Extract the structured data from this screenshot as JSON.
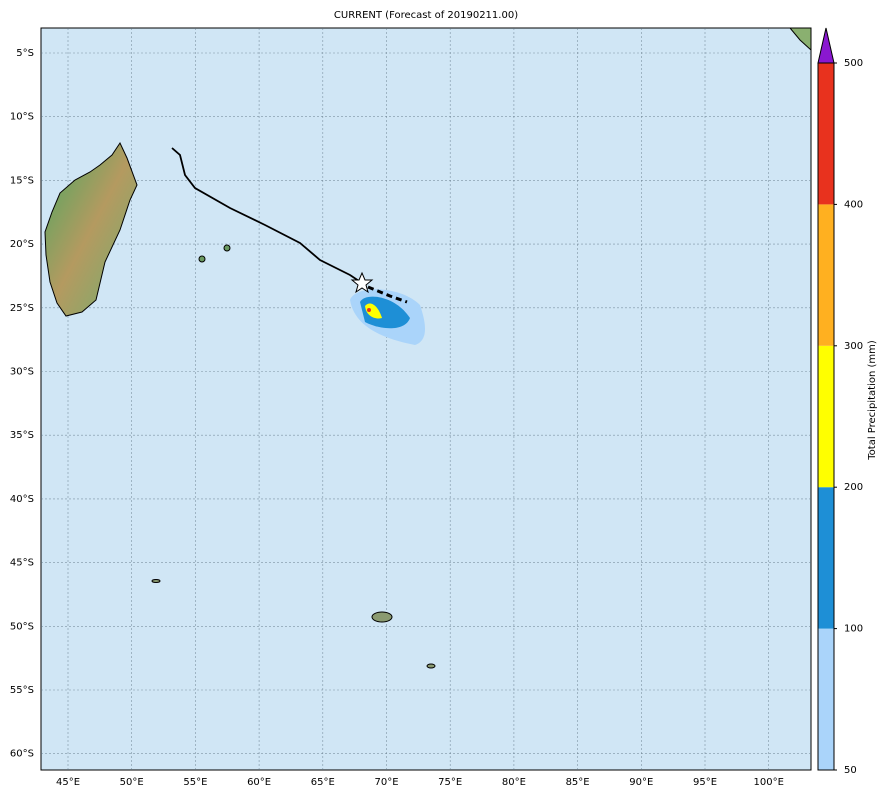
{
  "title": "CURRENT (Forecast of 20190211.00)",
  "lat_labels": [
    "5°S",
    "10°S",
    "15°S",
    "20°S",
    "25°S",
    "30°S",
    "35°S",
    "40°S",
    "45°S",
    "50°S",
    "55°S",
    "60°S"
  ],
  "lon_labels": [
    "45°E",
    "50°E",
    "55°E",
    "60°E",
    "65°E",
    "70°E",
    "75°E",
    "80°E",
    "85°E",
    "90°E",
    "95°E",
    "100°E"
  ],
  "colorbar": {
    "label": "Total Precipitation (mm)",
    "ticks": [
      50,
      100,
      200,
      300,
      400,
      500
    ],
    "colors": [
      "#aad4fa",
      "#1e8fd6",
      "#ffff00",
      "#ffb020",
      "#e8321e"
    ],
    "extend_color": "#8a18d0"
  }
}
